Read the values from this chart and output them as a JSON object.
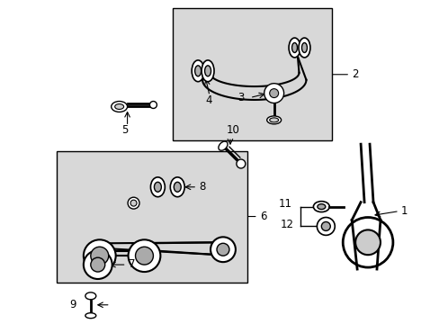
{
  "background_color": "#ffffff",
  "box1_color": "#d8d8d8",
  "box2_color": "#d8d8d8",
  "line_color": "#000000",
  "fontsize": 8.5
}
